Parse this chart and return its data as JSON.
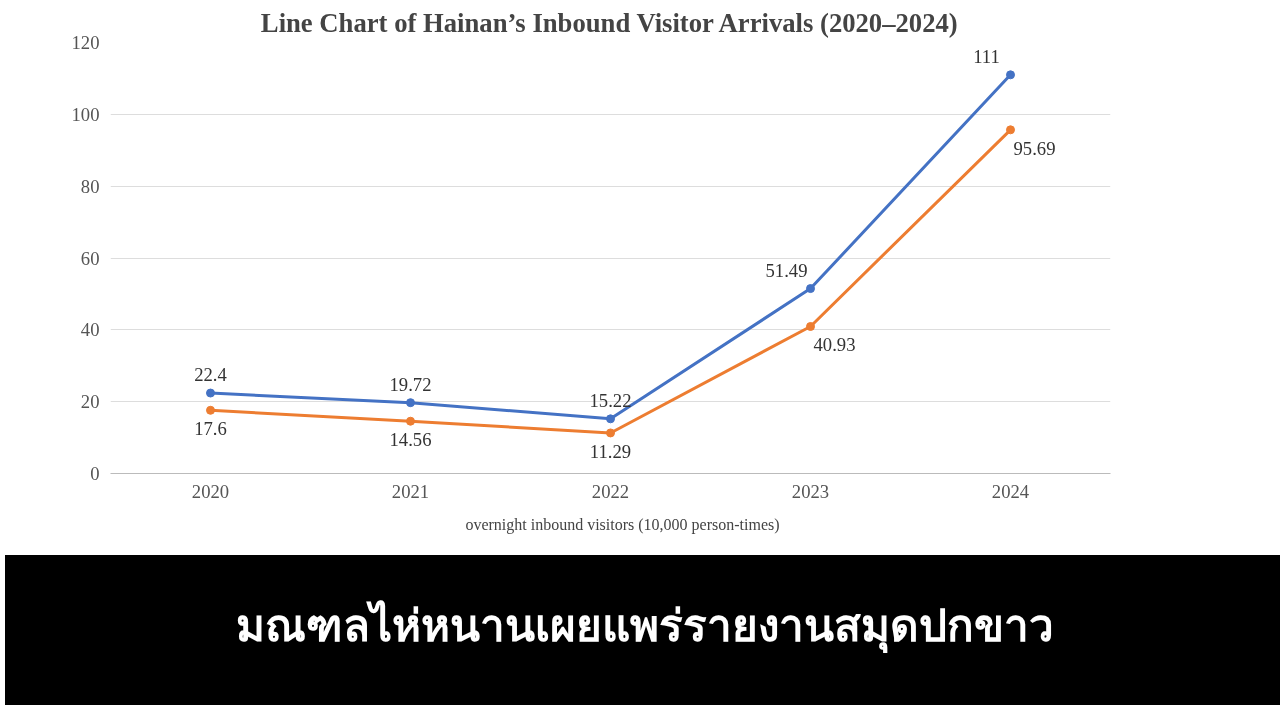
{
  "chart_data": {
    "type": "line",
    "title": "Line Chart of Hainan’s Inbound Visitor Arrivals (2020–2024)",
    "categories": [
      "2020",
      "2021",
      "2022",
      "2023",
      "2024"
    ],
    "series": [
      {
        "name": "overnight inbound visitors (10,000 person-times)",
        "color": "#4472c4",
        "values": [
          22.4,
          19.72,
          15.22,
          51.49,
          111
        ]
      },
      {
        "color": "#ed7d31",
        "values": [
          17.6,
          14.56,
          11.29,
          40.93,
          95.69
        ]
      }
    ],
    "ylim": [
      0,
      120
    ],
    "yticks": [
      0,
      20,
      40,
      60,
      80,
      100,
      120
    ],
    "grid": "y",
    "legend": "bottom",
    "marker": "circle",
    "line_style": "solid",
    "data_labels": true,
    "annotations": [
      "มณฑลไห่หนานเผยแพร่รายงานสมุดปกขาว"
    ]
  }
}
